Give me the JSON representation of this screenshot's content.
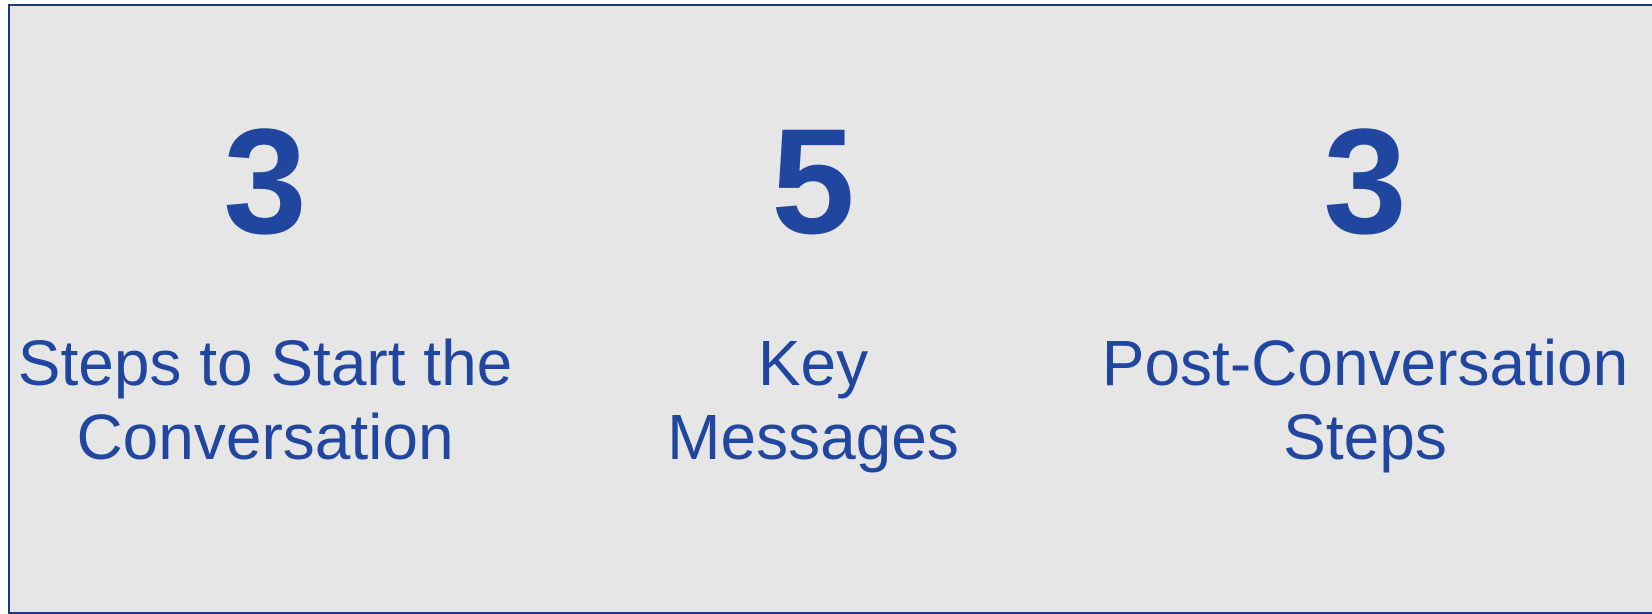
{
  "stats": [
    {
      "number": 3,
      "label_lines": [
        "Steps to Start the",
        "Conversation"
      ]
    },
    {
      "number": 5,
      "label_lines": [
        "Key",
        "Messages"
      ]
    },
    {
      "number": 3,
      "label_lines": [
        "Post-Conversation",
        "Steps"
      ]
    }
  ]
}
